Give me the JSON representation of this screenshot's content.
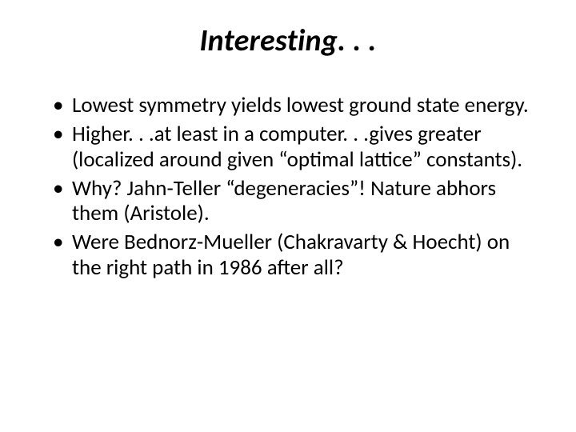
{
  "slide": {
    "title": "Interesting. . .",
    "title_fontsize": 38,
    "title_style": "italic-bold",
    "bullets": [
      "Lowest symmetry yields lowest ground state energy.",
      "Higher. . .at least in a computer. . .gives greater (localized around given “optimal lattice” constants).",
      "Why?  Jahn-Teller “degeneracies”!  Nature abhors them (Aristole).",
      "Were Bednorz-Mueller (Chakravarty & Hoecht) on the right path in 1986 after all?"
    ],
    "bullet_fontsize": 27,
    "text_color": "#000000",
    "background_color": "#ffffff"
  }
}
